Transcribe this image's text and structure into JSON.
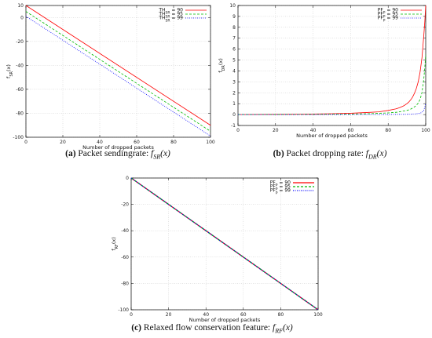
{
  "figure": {
    "subfigures": [
      {
        "label": "(a)",
        "caption_text": "Packet sendingrate: ",
        "caption_math": "f",
        "caption_sub": "SR",
        "caption_arg": "(x)"
      },
      {
        "label": "(b)",
        "caption_text": "Packet dropping rate: ",
        "caption_math": "f",
        "caption_sub": "DR",
        "caption_arg": "(x)"
      },
      {
        "label": "(c)",
        "caption_text": "Relaxed flow conservation feature: ",
        "caption_math": "f",
        "caption_sub": "RF",
        "caption_arg": "(x)"
      }
    ]
  },
  "chart_data": [
    {
      "type": "line",
      "xlabel": "Number of dropped packets",
      "ylabel": "f_SR(x)",
      "xlim": [
        0,
        100
      ],
      "ylim": [
        -100,
        10
      ],
      "xticks": [
        0,
        20,
        40,
        60,
        80,
        100
      ],
      "yticks": [
        10,
        0,
        -20,
        -40,
        -60,
        -80,
        -100
      ],
      "grid": true,
      "legend_position": "top-right",
      "series": [
        {
          "name": "TH_SR = 90",
          "color": "#ff0000",
          "dash": "solid",
          "x": [
            0,
            100
          ],
          "y": [
            10,
            -90
          ]
        },
        {
          "name": "TH_SR = 95",
          "color": "#00bb00",
          "dash": "dashed",
          "x": [
            0,
            100
          ],
          "y": [
            5,
            -95
          ]
        },
        {
          "name": "TH_SR = 99",
          "color": "#0000ff",
          "dash": "dotted",
          "x": [
            0,
            100
          ],
          "y": [
            1,
            -99
          ]
        }
      ]
    },
    {
      "type": "line",
      "xlabel": "Number of dropped packets",
      "ylabel": "f_DR(x)",
      "xlim": [
        0,
        100
      ],
      "ylim": [
        -1,
        10
      ],
      "xticks": [
        0,
        20,
        40,
        60,
        80,
        100
      ],
      "yticks": [
        10,
        9,
        8,
        7,
        6,
        5,
        4,
        3,
        2,
        1,
        0,
        -1
      ],
      "grid": true,
      "legend_position": "top-right",
      "series": [
        {
          "name": "PF_P = 90",
          "color": "#ff0000",
          "dash": "solid",
          "x": [
            0,
            10,
            20,
            30,
            40,
            50,
            60,
            70,
            75,
            80,
            84,
            86,
            88,
            89,
            90,
            91,
            92,
            93,
            94,
            95,
            96,
            97,
            98,
            99,
            99.5,
            100
          ],
          "y": [
            0,
            0.01,
            0.02,
            0.03,
            0.05,
            0.08,
            0.12,
            0.2,
            0.25,
            0.38,
            0.52,
            0.63,
            0.78,
            0.88,
            1.0,
            1.15,
            1.35,
            1.6,
            1.95,
            2.4,
            3.0,
            3.9,
            5.2,
            7.3,
            8.5,
            10
          ]
        },
        {
          "name": "PF_P = 95",
          "color": "#00bb00",
          "dash": "dashed",
          "x": [
            0,
            20,
            40,
            60,
            70,
            80,
            85,
            90,
            92,
            94,
            95,
            96,
            97,
            98,
            99,
            99.5,
            100
          ],
          "y": [
            0,
            0.01,
            0.02,
            0.05,
            0.08,
            0.15,
            0.22,
            0.38,
            0.5,
            0.7,
            0.85,
            1.05,
            1.4,
            2.0,
            3.3,
            4.3,
            5.5
          ]
        },
        {
          "name": "PF_P = 99",
          "color": "#0000ff",
          "dash": "dotted",
          "x": [
            0,
            40,
            80,
            90,
            95,
            97,
            98,
            99,
            99.5,
            100
          ],
          "y": [
            0,
            0.0,
            0.01,
            0.03,
            0.07,
            0.12,
            0.2,
            0.4,
            0.7,
            1.0
          ]
        }
      ]
    },
    {
      "type": "line",
      "xlabel": "Number of dropped packets",
      "ylabel": "f_RF(x)",
      "xlim": [
        0,
        100
      ],
      "ylim": [
        -100,
        0
      ],
      "xticks": [
        0,
        20,
        40,
        60,
        80,
        100
      ],
      "yticks": [
        0,
        -20,
        -40,
        -60,
        -80,
        -100
      ],
      "grid": true,
      "legend_position": "top-right",
      "series": [
        {
          "name": "PF_P = 90",
          "color": "#ff0000",
          "dash": "solid",
          "x": [
            0,
            100
          ],
          "y": [
            0,
            -100
          ]
        },
        {
          "name": "PF_P = 95",
          "color": "#00bb00",
          "dash": "dashed",
          "x": [
            0,
            100
          ],
          "y": [
            0,
            -100
          ]
        },
        {
          "name": "PF_P = 99",
          "color": "#0000ff",
          "dash": "dotted",
          "x": [
            0,
            100
          ],
          "y": [
            0,
            -100
          ]
        }
      ]
    }
  ]
}
